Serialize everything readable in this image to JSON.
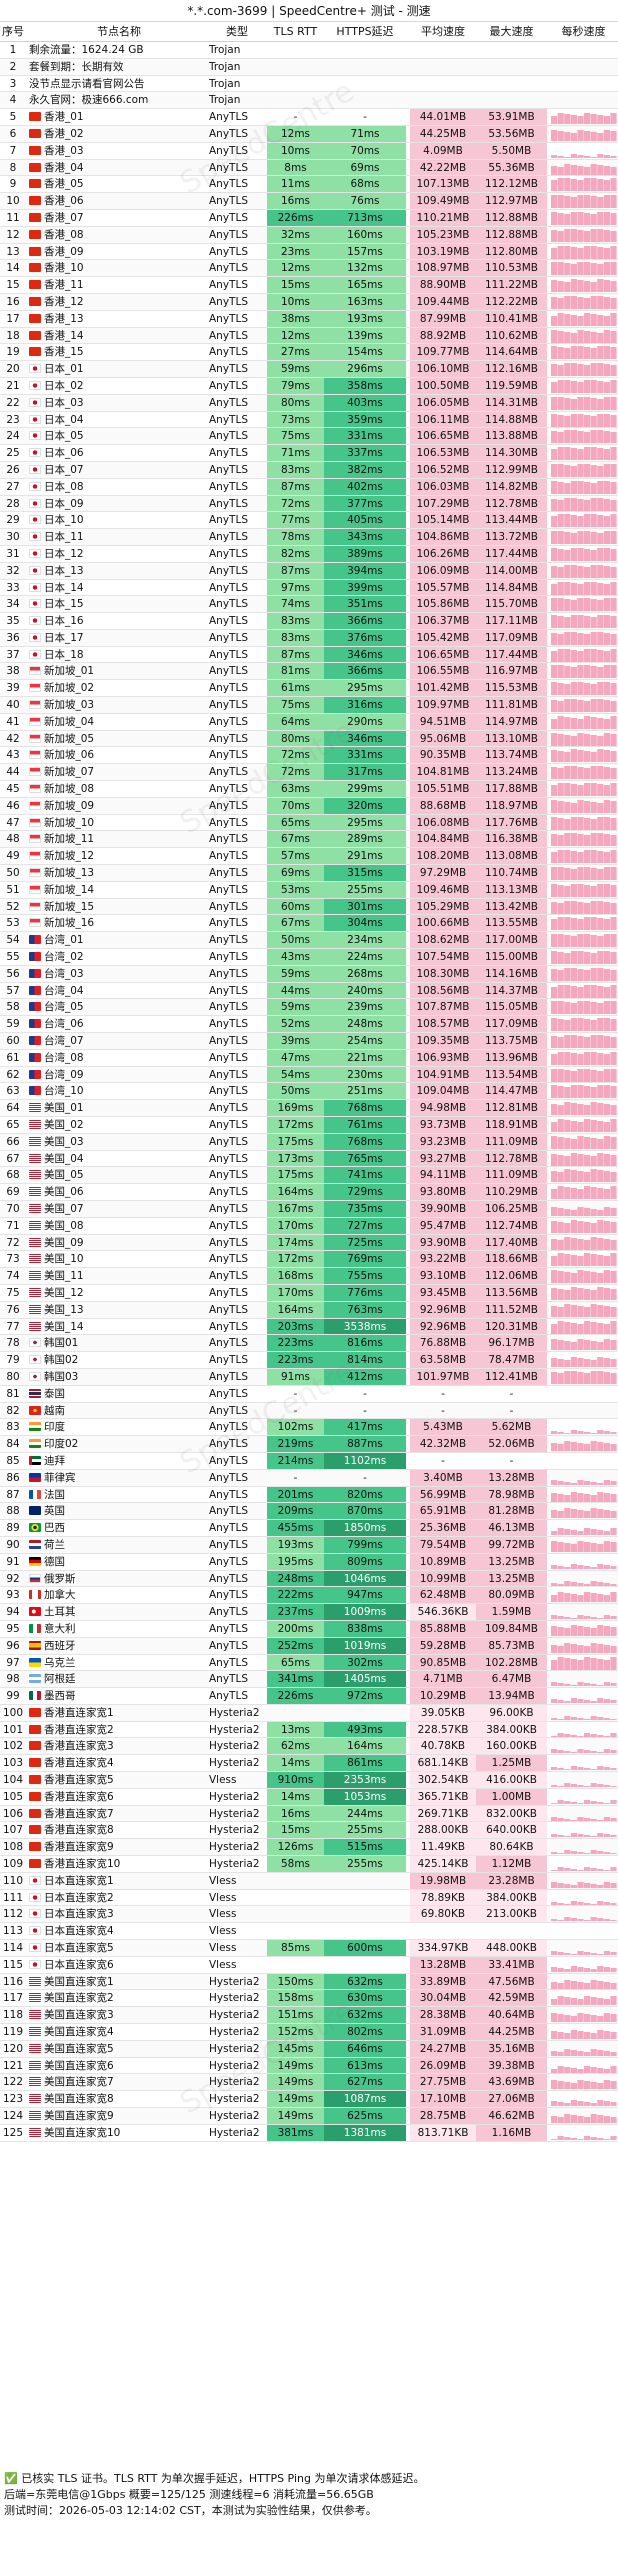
{
  "title": "*.*.com-3699 | SpeedCentre+ 测试 - 测速",
  "watermark": "SpeedCentre",
  "headers": [
    "序号",
    "节点名称",
    "类型",
    "TLS RTT",
    "HTTPS延迟",
    "平均速度",
    "最大速度",
    "每秒速度"
  ],
  "colors": {
    "rtt_green": "#8fe0a4",
    "https_green": "#46c58a",
    "https_dark": "#2a9f6c",
    "speed_pink": "#f7c6d4",
    "speed_light": "#fde6ee",
    "spark_pink": "#f4a7bf",
    "row_pink": "#fff3f6",
    "row_green": "#eefaf1"
  },
  "rows": [
    [
      "1",
      "剩余流量：1624.24 GB",
      "Trojan",
      "",
      "",
      "",
      "",
      "",
      "info"
    ],
    [
      "2",
      "套餐到期：长期有效",
      "Trojan",
      "",
      "",
      "",
      "",
      "",
      "info"
    ],
    [
      "3",
      "没节点显示请看官网公告",
      "Trojan",
      "",
      "",
      "",
      "",
      "",
      "info"
    ],
    [
      "4",
      "永久官网：极速666.com",
      "Trojan",
      "",
      "",
      "",
      "",
      "",
      "info"
    ],
    [
      "5",
      "香港_01",
      "AnyTLS",
      "-",
      "-",
      "44.01MB",
      "53.91MB",
      "7",
      "hk"
    ],
    [
      "6",
      "香港_02",
      "AnyTLS",
      "12ms",
      "71ms",
      "44.25MB",
      "53.56MB",
      "7",
      "hk"
    ],
    [
      "7",
      "香港_03",
      "AnyTLS",
      "10ms",
      "70ms",
      "4.09MB",
      "5.50MB",
      "1",
      "hk"
    ],
    [
      "8",
      "香港_04",
      "AnyTLS",
      "8ms",
      "69ms",
      "42.22MB",
      "55.36MB",
      "7",
      "hk"
    ],
    [
      "9",
      "香港_05",
      "AnyTLS",
      "11ms",
      "68ms",
      "107.13MB",
      "112.12MB",
      "9",
      "hk"
    ],
    [
      "10",
      "香港_06",
      "AnyTLS",
      "16ms",
      "76ms",
      "109.49MB",
      "112.97MB",
      "9",
      "hk"
    ],
    [
      "11",
      "香港_07",
      "AnyTLS",
      "226ms",
      "713ms",
      "110.21MB",
      "112.88MB",
      "9",
      "hk"
    ],
    [
      "12",
      "香港_08",
      "AnyTLS",
      "32ms",
      "160ms",
      "105.23MB",
      "112.88MB",
      "9",
      "hk"
    ],
    [
      "13",
      "香港_09",
      "AnyTLS",
      "23ms",
      "157ms",
      "103.19MB",
      "112.80MB",
      "9",
      "hk"
    ],
    [
      "14",
      "香港_10",
      "AnyTLS",
      "12ms",
      "132ms",
      "108.97MB",
      "110.53MB",
      "9",
      "hk"
    ],
    [
      "15",
      "香港_11",
      "AnyTLS",
      "15ms",
      "165ms",
      "88.90MB",
      "111.22MB",
      "8",
      "hk"
    ],
    [
      "16",
      "香港_12",
      "AnyTLS",
      "10ms",
      "163ms",
      "109.44MB",
      "112.22MB",
      "9",
      "hk"
    ],
    [
      "17",
      "香港_13",
      "AnyTLS",
      "38ms",
      "193ms",
      "87.99MB",
      "110.41MB",
      "8",
      "hk"
    ],
    [
      "18",
      "香港_14",
      "AnyTLS",
      "12ms",
      "139ms",
      "88.92MB",
      "110.62MB",
      "8",
      "hk"
    ],
    [
      "19",
      "香港_15",
      "AnyTLS",
      "27ms",
      "154ms",
      "109.77MB",
      "114.64MB",
      "9",
      "hk"
    ],
    [
      "20",
      "日本_01",
      "AnyTLS",
      "59ms",
      "296ms",
      "106.10MB",
      "112.16MB",
      "9",
      "jp"
    ],
    [
      "21",
      "日本_02",
      "AnyTLS",
      "79ms",
      "358ms",
      "100.50MB",
      "119.59MB",
      "9",
      "jp"
    ],
    [
      "22",
      "日本_03",
      "AnyTLS",
      "80ms",
      "403ms",
      "106.05MB",
      "114.31MB",
      "9",
      "jp"
    ],
    [
      "23",
      "日本_04",
      "AnyTLS",
      "73ms",
      "359ms",
      "106.11MB",
      "114.88MB",
      "9",
      "jp"
    ],
    [
      "24",
      "日本_05",
      "AnyTLS",
      "75ms",
      "331ms",
      "106.65MB",
      "113.88MB",
      "9",
      "jp"
    ],
    [
      "25",
      "日本_06",
      "AnyTLS",
      "71ms",
      "337ms",
      "106.53MB",
      "114.30MB",
      "9",
      "jp"
    ],
    [
      "26",
      "日本_07",
      "AnyTLS",
      "83ms",
      "382ms",
      "106.52MB",
      "112.99MB",
      "9",
      "jp"
    ],
    [
      "27",
      "日本_08",
      "AnyTLS",
      "87ms",
      "402ms",
      "106.03MB",
      "114.82MB",
      "9",
      "jp"
    ],
    [
      "28",
      "日本_09",
      "AnyTLS",
      "72ms",
      "377ms",
      "107.29MB",
      "112.78MB",
      "9",
      "jp"
    ],
    [
      "29",
      "日本_10",
      "AnyTLS",
      "77ms",
      "405ms",
      "105.14MB",
      "113.44MB",
      "9",
      "jp"
    ],
    [
      "30",
      "日本_11",
      "AnyTLS",
      "78ms",
      "343ms",
      "104.86MB",
      "113.72MB",
      "9",
      "jp"
    ],
    [
      "31",
      "日本_12",
      "AnyTLS",
      "82ms",
      "389ms",
      "106.26MB",
      "117.44MB",
      "9",
      "jp"
    ],
    [
      "32",
      "日本_13",
      "AnyTLS",
      "87ms",
      "394ms",
      "106.09MB",
      "114.00MB",
      "9",
      "jp"
    ],
    [
      "33",
      "日本_14",
      "AnyTLS",
      "97ms",
      "399ms",
      "105.57MB",
      "114.84MB",
      "9",
      "jp"
    ],
    [
      "34",
      "日本_15",
      "AnyTLS",
      "74ms",
      "351ms",
      "105.86MB",
      "115.70MB",
      "9",
      "jp"
    ],
    [
      "35",
      "日本_16",
      "AnyTLS",
      "83ms",
      "366ms",
      "106.37MB",
      "117.11MB",
      "9",
      "jp"
    ],
    [
      "36",
      "日本_17",
      "AnyTLS",
      "83ms",
      "376ms",
      "105.42MB",
      "117.09MB",
      "9",
      "jp"
    ],
    [
      "37",
      "日本_18",
      "AnyTLS",
      "87ms",
      "346ms",
      "106.65MB",
      "117.44MB",
      "9",
      "jp"
    ],
    [
      "38",
      "新加坡_01",
      "AnyTLS",
      "81ms",
      "366ms",
      "106.55MB",
      "116.97MB",
      "9",
      "sg"
    ],
    [
      "39",
      "新加坡_02",
      "AnyTLS",
      "61ms",
      "295ms",
      "101.42MB",
      "115.53MB",
      "9",
      "sg"
    ],
    [
      "40",
      "新加坡_03",
      "AnyTLS",
      "75ms",
      "316ms",
      "109.97MB",
      "111.81MB",
      "9",
      "sg"
    ],
    [
      "41",
      "新加坡_04",
      "AnyTLS",
      "64ms",
      "290ms",
      "94.51MB",
      "114.97MB",
      "8",
      "sg"
    ],
    [
      "42",
      "新加坡_05",
      "AnyTLS",
      "80ms",
      "346ms",
      "95.06MB",
      "113.10MB",
      "8",
      "sg"
    ],
    [
      "43",
      "新加坡_06",
      "AnyTLS",
      "72ms",
      "331ms",
      "90.35MB",
      "113.74MB",
      "8",
      "sg"
    ],
    [
      "44",
      "新加坡_07",
      "AnyTLS",
      "72ms",
      "317ms",
      "104.81MB",
      "113.24MB",
      "9",
      "sg"
    ],
    [
      "45",
      "新加坡_08",
      "AnyTLS",
      "63ms",
      "299ms",
      "105.51MB",
      "117.88MB",
      "9",
      "sg"
    ],
    [
      "46",
      "新加坡_09",
      "AnyTLS",
      "70ms",
      "320ms",
      "88.68MB",
      "118.97MB",
      "8",
      "sg"
    ],
    [
      "47",
      "新加坡_10",
      "AnyTLS",
      "65ms",
      "295ms",
      "106.08MB",
      "117.76MB",
      "9",
      "sg"
    ],
    [
      "48",
      "新加坡_11",
      "AnyTLS",
      "67ms",
      "289ms",
      "104.84MB",
      "116.38MB",
      "9",
      "sg"
    ],
    [
      "49",
      "新加坡_12",
      "AnyTLS",
      "57ms",
      "291ms",
      "108.20MB",
      "113.08MB",
      "9",
      "sg"
    ],
    [
      "50",
      "新加坡_13",
      "AnyTLS",
      "69ms",
      "315ms",
      "97.29MB",
      "110.74MB",
      "9",
      "sg"
    ],
    [
      "51",
      "新加坡_14",
      "AnyTLS",
      "53ms",
      "255ms",
      "109.46MB",
      "113.13MB",
      "9",
      "sg"
    ],
    [
      "52",
      "新加坡_15",
      "AnyTLS",
      "60ms",
      "301ms",
      "105.29MB",
      "113.42MB",
      "9",
      "sg"
    ],
    [
      "53",
      "新加坡_16",
      "AnyTLS",
      "67ms",
      "304ms",
      "100.66MB",
      "113.55MB",
      "9",
      "sg"
    ],
    [
      "54",
      "台湾_01",
      "AnyTLS",
      "50ms",
      "234ms",
      "108.62MB",
      "117.00MB",
      "9",
      "tw"
    ],
    [
      "55",
      "台湾_02",
      "AnyTLS",
      "43ms",
      "224ms",
      "107.54MB",
      "115.00MB",
      "9",
      "tw"
    ],
    [
      "56",
      "台湾_03",
      "AnyTLS",
      "59ms",
      "268ms",
      "108.30MB",
      "114.16MB",
      "9",
      "tw"
    ],
    [
      "57",
      "台湾_04",
      "AnyTLS",
      "44ms",
      "240ms",
      "108.56MB",
      "114.37MB",
      "9",
      "tw"
    ],
    [
      "58",
      "台湾_05",
      "AnyTLS",
      "59ms",
      "239ms",
      "107.87MB",
      "115.05MB",
      "9",
      "tw"
    ],
    [
      "59",
      "台湾_06",
      "AnyTLS",
      "52ms",
      "248ms",
      "108.57MB",
      "117.09MB",
      "9",
      "tw"
    ],
    [
      "60",
      "台湾_07",
      "AnyTLS",
      "39ms",
      "254ms",
      "109.35MB",
      "113.75MB",
      "9",
      "tw"
    ],
    [
      "61",
      "台湾_08",
      "AnyTLS",
      "47ms",
      "221ms",
      "106.93MB",
      "113.96MB",
      "9",
      "tw"
    ],
    [
      "62",
      "台湾_09",
      "AnyTLS",
      "54ms",
      "230ms",
      "104.91MB",
      "113.54MB",
      "9",
      "tw"
    ],
    [
      "63",
      "台湾_10",
      "AnyTLS",
      "50ms",
      "251ms",
      "109.04MB",
      "114.47MB",
      "9",
      "tw"
    ],
    [
      "64",
      "美国_01",
      "AnyTLS",
      "169ms",
      "768ms",
      "94.98MB",
      "112.81MB",
      "8",
      "us"
    ],
    [
      "65",
      "美国_02",
      "AnyTLS",
      "172ms",
      "761ms",
      "93.73MB",
      "118.91MB",
      "8",
      "us"
    ],
    [
      "66",
      "美国_03",
      "AnyTLS",
      "175ms",
      "768ms",
      "93.23MB",
      "111.09MB",
      "8",
      "us"
    ],
    [
      "67",
      "美国_04",
      "AnyTLS",
      "173ms",
      "765ms",
      "93.27MB",
      "112.78MB",
      "8",
      "us"
    ],
    [
      "68",
      "美国_05",
      "AnyTLS",
      "175ms",
      "741ms",
      "94.11MB",
      "111.09MB",
      "8",
      "us"
    ],
    [
      "69",
      "美国_06",
      "AnyTLS",
      "164ms",
      "729ms",
      "93.80MB",
      "110.29MB",
      "8",
      "us"
    ],
    [
      "70",
      "美国_07",
      "AnyTLS",
      "167ms",
      "735ms",
      "39.90MB",
      "106.25MB",
      "5",
      "us"
    ],
    [
      "71",
      "美国_08",
      "AnyTLS",
      "170ms",
      "727ms",
      "95.47MB",
      "112.74MB",
      "8",
      "us"
    ],
    [
      "72",
      "美国_09",
      "AnyTLS",
      "174ms",
      "725ms",
      "93.90MB",
      "117.40MB",
      "8",
      "us"
    ],
    [
      "73",
      "美国_10",
      "AnyTLS",
      "172ms",
      "769ms",
      "93.22MB",
      "118.66MB",
      "8",
      "us"
    ],
    [
      "74",
      "美国_11",
      "AnyTLS",
      "168ms",
      "755ms",
      "93.10MB",
      "112.06MB",
      "8",
      "us"
    ],
    [
      "75",
      "美国_12",
      "AnyTLS",
      "170ms",
      "776ms",
      "93.45MB",
      "113.56MB",
      "8",
      "us"
    ],
    [
      "76",
      "美国_13",
      "AnyTLS",
      "164ms",
      "763ms",
      "92.96MB",
      "111.52MB",
      "8",
      "us"
    ],
    [
      "77",
      "美国_14",
      "AnyTLS",
      "203ms",
      "3538ms",
      "92.96MB",
      "120.31MB",
      "8",
      "us"
    ],
    [
      "78",
      "韩国01",
      "AnyTLS",
      "223ms",
      "816ms",
      "76.88MB",
      "96.17MB",
      "7",
      "kr"
    ],
    [
      "79",
      "韩国02",
      "AnyTLS",
      "223ms",
      "814ms",
      "63.58MB",
      "78.47MB",
      "6",
      "kr"
    ],
    [
      "80",
      "韩国03",
      "AnyTLS",
      "91ms",
      "412ms",
      "101.97MB",
      "112.41MB",
      "9",
      "kr"
    ],
    [
      "81",
      "泰国",
      "AnyTLS",
      "-",
      "-",
      "-",
      "-",
      "0",
      "th"
    ],
    [
      "82",
      "越南",
      "AnyTLS",
      "-",
      "-",
      "-",
      "-",
      "0",
      "vn"
    ],
    [
      "83",
      "印度",
      "AnyTLS",
      "102ms",
      "417ms",
      "5.43MB",
      "5.62MB",
      "1",
      "in"
    ],
    [
      "84",
      "印度02",
      "AnyTLS",
      "219ms",
      "887ms",
      "42.32MB",
      "52.06MB",
      "6",
      "in"
    ],
    [
      "85",
      "迪拜",
      "AnyTLS",
      "214ms",
      "1102ms",
      "-",
      "-",
      "0",
      "ae"
    ],
    [
      "86",
      "菲律宾",
      "AnyTLS",
      "-",
      "-",
      "3.40MB",
      "13.28MB",
      "2",
      "ph"
    ],
    [
      "87",
      "法国",
      "AnyTLS",
      "201ms",
      "820ms",
      "56.99MB",
      "78.98MB",
      "6",
      "fr"
    ],
    [
      "88",
      "英国",
      "AnyTLS",
      "209ms",
      "870ms",
      "65.91MB",
      "81.28MB",
      "6",
      "gb"
    ],
    [
      "89",
      "巴西",
      "AnyTLS",
      "455ms",
      "1850ms",
      "25.36MB",
      "46.13MB",
      "4",
      "br"
    ],
    [
      "90",
      "荷兰",
      "AnyTLS",
      "193ms",
      "799ms",
      "79.54MB",
      "99.72MB",
      "7",
      "nl"
    ],
    [
      "91",
      "德国",
      "AnyTLS",
      "195ms",
      "809ms",
      "10.89MB",
      "13.25MB",
      "2",
      "de"
    ],
    [
      "92",
      "俄罗斯",
      "AnyTLS",
      "248ms",
      "1046ms",
      "10.99MB",
      "13.25MB",
      "2",
      "ru"
    ],
    [
      "93",
      "加拿大",
      "AnyTLS",
      "222ms",
      "947ms",
      "62.48MB",
      "80.09MB",
      "6",
      "ca"
    ],
    [
      "94",
      "土耳其",
      "AnyTLS",
      "237ms",
      "1009ms",
      "546.36KB",
      "1.59MB",
      "1",
      "tr"
    ],
    [
      "95",
      "意大利",
      "AnyTLS",
      "200ms",
      "838ms",
      "85.88MB",
      "109.84MB",
      "7",
      "it"
    ],
    [
      "96",
      "西班牙",
      "AnyTLS",
      "252ms",
      "1019ms",
      "59.28MB",
      "85.73MB",
      "6",
      "es"
    ],
    [
      "97",
      "乌克兰",
      "AnyTLS",
      "65ms",
      "302ms",
      "90.85MB",
      "102.28MB",
      "8",
      "ua"
    ],
    [
      "98",
      "阿根廷",
      "AnyTLS",
      "341ms",
      "1405ms",
      "4.71MB",
      "6.47MB",
      "1",
      "ar"
    ],
    [
      "99",
      "墨西哥",
      "AnyTLS",
      "226ms",
      "972ms",
      "10.29MB",
      "13.94MB",
      "2",
      "mx"
    ],
    [
      "100",
      "香港直连家宽1",
      "Hysteria2",
      "",
      "",
      "39.05KB",
      "96.00KB",
      "1",
      "hk"
    ],
    [
      "101",
      "香港直连家宽2",
      "Hysteria2",
      "13ms",
      "493ms",
      "228.57KB",
      "384.00KB",
      "1",
      "hk"
    ],
    [
      "102",
      "香港直连家宽3",
      "Hysteria2",
      "62ms",
      "164ms",
      "40.78KB",
      "160.00KB",
      "1",
      "hk"
    ],
    [
      "103",
      "香港直连家宽4",
      "Hysteria2",
      "14ms",
      "861ms",
      "681.14KB",
      "1.25MB",
      "1",
      "hk"
    ],
    [
      "104",
      "香港直连家宽5",
      "Vless",
      "910ms",
      "2353ms",
      "302.54KB",
      "416.00KB",
      "1",
      "hk"
    ],
    [
      "105",
      "香港直连家宽6",
      "Hysteria2",
      "14ms",
      "1053ms",
      "365.71KB",
      "1.00MB",
      "1",
      "hk"
    ],
    [
      "106",
      "香港直连家宽7",
      "Hysteria2",
      "16ms",
      "244ms",
      "269.71KB",
      "832.00KB",
      "1",
      "hk"
    ],
    [
      "107",
      "香港直连家宽8",
      "Hysteria2",
      "15ms",
      "255ms",
      "288.00KB",
      "640.00KB",
      "1",
      "hk"
    ],
    [
      "108",
      "香港直连家宽9",
      "Hysteria2",
      "126ms",
      "515ms",
      "11.49KB",
      "80.64KB",
      "1",
      "hk"
    ],
    [
      "109",
      "香港直连家宽10",
      "Hysteria2",
      "58ms",
      "255ms",
      "425.14KB",
      "1.12MB",
      "1",
      "hk"
    ],
    [
      "110",
      "日本直连家宽1",
      "Vless",
      "",
      "",
      "19.98MB",
      "23.28MB",
      "3",
      "jp"
    ],
    [
      "111",
      "日本直连家宽2",
      "Vless",
      "",
      "",
      "78.89KB",
      "384.00KB",
      "1",
      "jp"
    ],
    [
      "112",
      "日本直连家宽3",
      "Vless",
      "",
      "",
      "69.80KB",
      "213.00KB",
      "1",
      "jp"
    ],
    [
      "113",
      "日本直连家宽4",
      "Vless",
      "",
      "",
      "",
      "",
      "0",
      "jp"
    ],
    [
      "114",
      "日本直连家宽5",
      "Vless",
      "85ms",
      "600ms",
      "334.97KB",
      "448.00KB",
      "1",
      "jp"
    ],
    [
      "115",
      "日本直连家宽6",
      "Vless",
      "",
      "",
      "13.28MB",
      "33.41MB",
      "3",
      "jp"
    ],
    [
      "116",
      "美国直连家宽1",
      "Hysteria2",
      "150ms",
      "632ms",
      "33.89MB",
      "47.56MB",
      "5",
      "us"
    ],
    [
      "117",
      "美国直连家宽2",
      "Hysteria2",
      "158ms",
      "630ms",
      "30.04MB",
      "42.59MB",
      "5",
      "us"
    ],
    [
      "118",
      "美国直连家宽3",
      "Hysteria2",
      "151ms",
      "632ms",
      "28.38MB",
      "40.64MB",
      "5",
      "us"
    ],
    [
      "119",
      "美国直连家宽4",
      "Hysteria2",
      "152ms",
      "802ms",
      "31.09MB",
      "44.25MB",
      "5",
      "us"
    ],
    [
      "120",
      "美国直连家宽5",
      "Hysteria2",
      "145ms",
      "646ms",
      "24.27MB",
      "35.16MB",
      "4",
      "us"
    ],
    [
      "121",
      "美国直连家宽6",
      "Hysteria2",
      "149ms",
      "613ms",
      "26.09MB",
      "39.38MB",
      "4",
      "us"
    ],
    [
      "122",
      "美国直连家宽7",
      "Hysteria2",
      "149ms",
      "627ms",
      "27.75MB",
      "43.69MB",
      "5",
      "us"
    ],
    [
      "123",
      "美国直连家宽8",
      "Hysteria2",
      "149ms",
      "1087ms",
      "17.10MB",
      "27.06MB",
      "3",
      "us"
    ],
    [
      "124",
      "美国直连家宽9",
      "Hysteria2",
      "149ms",
      "625ms",
      "28.75MB",
      "46.62MB",
      "5",
      "us"
    ],
    [
      "125",
      "美国直连家宽10",
      "Hysteria2",
      "381ms",
      "1381ms",
      "813.71KB",
      "1.16MB",
      "1",
      "us"
    ]
  ],
  "footer": [
    "✅ 已核实 TLS 证书。TLS RTT 为单次握手延迟，HTTPS Ping 为单次请求体感延迟。",
    "后端=东莞电信@1Gbps 概要=125/125 测速线程=6 消耗流量=56.65GB",
    "测试时间：2026-05-03 12:14:02 CST，本测试为实验性结果，仅供参考。"
  ]
}
